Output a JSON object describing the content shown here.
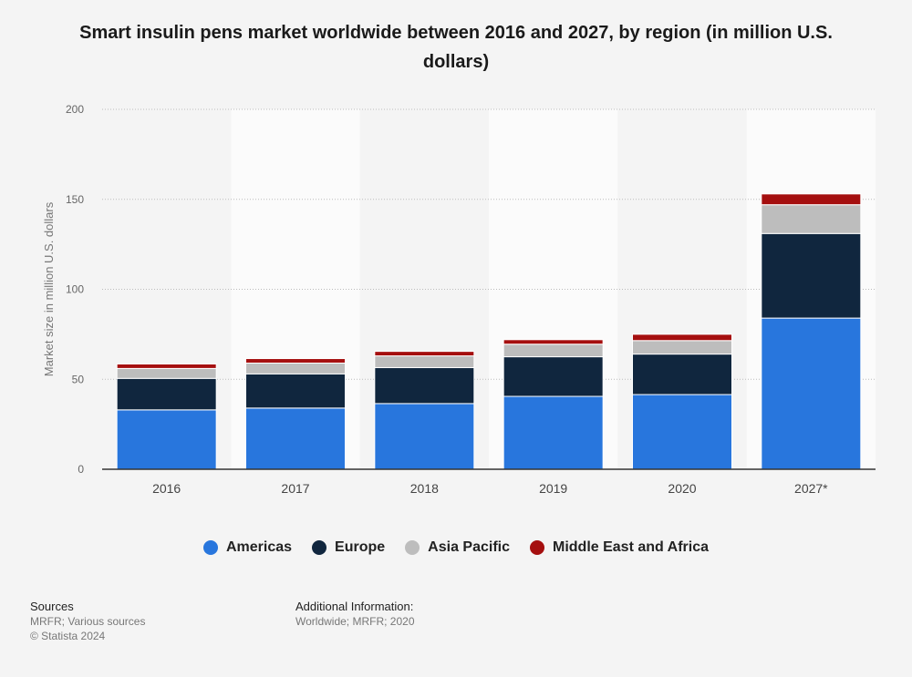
{
  "title": "Smart insulin pens market worldwide between 2016 and 2027, by region (in million U.S. dollars)",
  "colors": {
    "americas": "#2876dd",
    "europe": "#10263e",
    "asia_pacific": "#bdbdbd",
    "middle_east_africa": "#a50f0f",
    "band": "#fbfbfb",
    "grid": "#bbbbbb"
  },
  "chart_data": {
    "type": "bar",
    "stacked": true,
    "categories": [
      "2016",
      "2017",
      "2018",
      "2019",
      "2020",
      "2027*"
    ],
    "series": [
      {
        "name": "Americas",
        "values": [
          33,
          34,
          36.5,
          40.5,
          41.5,
          84
        ],
        "color": "#2876dd"
      },
      {
        "name": "Europe",
        "values": [
          17.5,
          19,
          20,
          22,
          22.5,
          47
        ],
        "color": "#10263e"
      },
      {
        "name": "Asia Pacific",
        "values": [
          5.5,
          6,
          6.5,
          7,
          7.5,
          16
        ],
        "color": "#bdbdbd"
      },
      {
        "name": "Middle East and Africa",
        "values": [
          2.5,
          2.5,
          2.5,
          2.5,
          3.5,
          6
        ],
        "color": "#a50f0f"
      }
    ],
    "ylabel": "Market size in million U.S. dollars",
    "xlabel": "",
    "ylim": [
      0,
      200
    ],
    "yticks": [
      0,
      50,
      100,
      150,
      200
    ],
    "grid": true,
    "legend_position": "bottom-center"
  },
  "footer": {
    "sources_heading": "Sources",
    "sources_line1": "MRFR; Various sources",
    "sources_line2": "© Statista 2024",
    "additional_heading": "Additional Information:",
    "additional_text": "Worldwide; MRFR; 2020"
  }
}
